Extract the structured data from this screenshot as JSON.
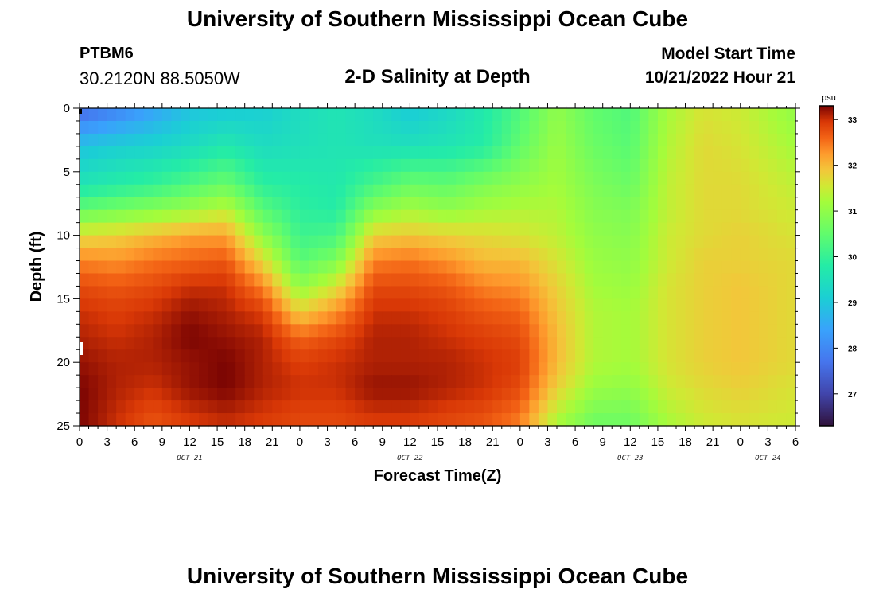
{
  "header": {
    "title": "University of Southern Mississippi Ocean Cube",
    "station_id": "PTBM6",
    "coordinates": "30.2120N  88.5050W",
    "subtitle": "2-D Salinity at Depth",
    "model_start_label": "Model Start Time",
    "model_start_value": "10/21/2022 Hour 21"
  },
  "footer": {
    "title": "University of Southern Mississippi Ocean Cube"
  },
  "colors": {
    "background": "#ffffff",
    "axis": "#000000"
  },
  "chart_data": {
    "type": "heatmap",
    "title": "2-D Salinity at Depth",
    "xlabel": "Forecast Time(Z)",
    "ylabel": "Depth (ft)",
    "x_range_hours": [
      0,
      78
    ],
    "x_tick_labels": [
      "0",
      "3",
      "6",
      "9",
      "12",
      "15",
      "18",
      "21",
      "0",
      "3",
      "6",
      "9",
      "12",
      "15",
      "18",
      "21",
      "0",
      "3",
      "6",
      "9",
      "12",
      "15",
      "18",
      "21",
      "0",
      "3",
      "6"
    ],
    "day_labels": [
      {
        "label": "OCT 21",
        "hour": 12
      },
      {
        "label": "OCT 22",
        "hour": 36
      },
      {
        "label": "OCT 23",
        "hour": 60
      },
      {
        "label": "OCT 24",
        "hour": 75
      }
    ],
    "ylim": [
      0,
      25
    ],
    "y_tick_labels": [
      "0",
      "5",
      "10",
      "15",
      "20",
      "25"
    ],
    "colorbar": {
      "unit": "psu",
      "min": 26.3,
      "max": 33.3,
      "ticks": [
        "27",
        "28",
        "29",
        "30",
        "31",
        "32",
        "33"
      ]
    },
    "salinity_grid": {
      "description": "Salinity (psu) at forecast hour (columns) and depth in ft (rows)",
      "hours": [
        0,
        4,
        8,
        12,
        16,
        20,
        24,
        28,
        32,
        36,
        40,
        44,
        48,
        52,
        56,
        60,
        64,
        68,
        72,
        78
      ],
      "depths": [
        0,
        3,
        6,
        8,
        10,
        12,
        14,
        16,
        18,
        20,
        22,
        25
      ],
      "values": [
        [
          27.5,
          27.9,
          28.4,
          28.9,
          29.0,
          29.1,
          29.4,
          29.6,
          29.4,
          29.0,
          29.3,
          29.7,
          30.3,
          31.0,
          30.5,
          30.3,
          31.2,
          31.6,
          31.5,
          31.0
        ],
        [
          28.9,
          29.1,
          29.2,
          29.4,
          29.7,
          29.4,
          29.5,
          29.6,
          29.5,
          29.5,
          29.6,
          29.8,
          30.5,
          31.1,
          30.6,
          30.4,
          31.3,
          31.7,
          31.6,
          31.2
        ],
        [
          29.6,
          29.8,
          30.0,
          30.3,
          30.6,
          29.9,
          29.8,
          29.7,
          30.2,
          30.6,
          30.5,
          30.8,
          31.0,
          31.2,
          30.8,
          30.6,
          31.4,
          31.7,
          31.7,
          31.4
        ],
        [
          30.5,
          30.7,
          30.9,
          31.1,
          31.4,
          30.4,
          29.9,
          29.8,
          30.9,
          31.2,
          31.0,
          31.2,
          31.3,
          31.3,
          30.9,
          30.8,
          31.4,
          31.7,
          31.7,
          31.5
        ],
        [
          31.7,
          31.8,
          32.0,
          32.2,
          32.2,
          31.0,
          30.1,
          30.2,
          31.8,
          31.9,
          31.8,
          31.7,
          31.6,
          31.4,
          31.0,
          30.9,
          31.5,
          31.7,
          31.8,
          31.6
        ],
        [
          32.4,
          32.3,
          32.5,
          32.6,
          32.7,
          31.7,
          30.4,
          30.8,
          32.4,
          32.5,
          32.3,
          32.0,
          32.0,
          31.6,
          31.1,
          31.0,
          31.5,
          31.8,
          31.8,
          31.7
        ],
        [
          32.8,
          32.7,
          32.8,
          33.0,
          33.0,
          32.4,
          31.0,
          31.6,
          32.8,
          32.8,
          32.7,
          32.4,
          32.3,
          31.8,
          31.2,
          31.1,
          31.6,
          31.8,
          31.9,
          31.7
        ],
        [
          33.0,
          32.9,
          33.0,
          33.2,
          33.1,
          32.9,
          31.8,
          32.3,
          33.0,
          33.0,
          32.9,
          32.7,
          32.6,
          31.9,
          31.3,
          31.2,
          31.6,
          31.8,
          31.9,
          31.7
        ],
        [
          33.1,
          33.0,
          33.1,
          33.3,
          33.2,
          33.1,
          32.6,
          32.8,
          33.1,
          33.1,
          33.0,
          32.9,
          32.8,
          32.0,
          31.3,
          31.2,
          31.6,
          31.8,
          31.9,
          31.7
        ],
        [
          33.2,
          33.1,
          33.1,
          33.2,
          33.3,
          33.1,
          32.9,
          33.0,
          33.1,
          33.1,
          33.1,
          33.0,
          32.9,
          32.0,
          31.3,
          31.2,
          31.6,
          31.8,
          31.9,
          31.7
        ],
        [
          33.3,
          33.1,
          33.0,
          33.2,
          33.3,
          33.1,
          33.0,
          33.0,
          33.2,
          33.2,
          33.1,
          33.0,
          32.8,
          31.8,
          31.1,
          31.0,
          31.5,
          31.7,
          31.8,
          31.6
        ],
        [
          33.3,
          33.0,
          32.7,
          32.9,
          33.0,
          32.9,
          32.8,
          32.8,
          32.9,
          32.9,
          32.8,
          32.7,
          32.4,
          31.2,
          30.6,
          30.6,
          31.2,
          31.5,
          31.6,
          31.5
        ]
      ]
    }
  }
}
